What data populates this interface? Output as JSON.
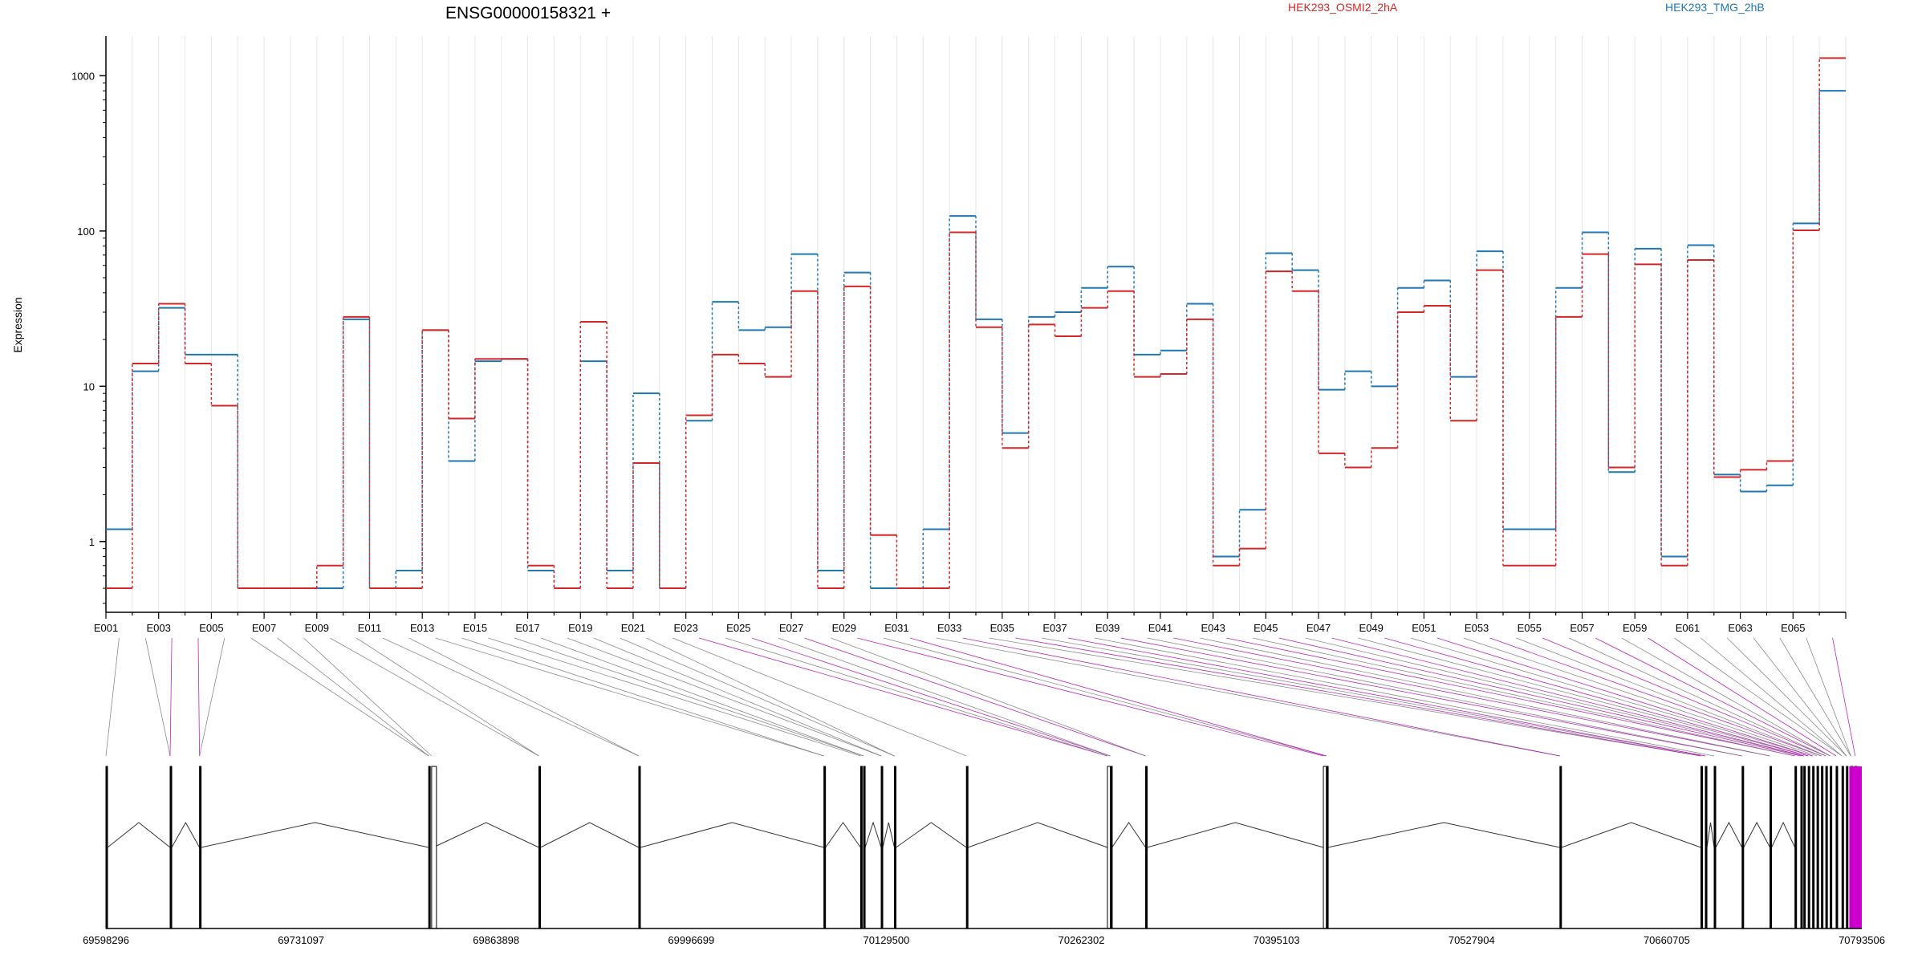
{
  "title": "ENSG00000158321 +",
  "colors": {
    "series_a": "#d62728",
    "series_b": "#1f77b4",
    "ticks": "#000000",
    "connector_gray": "#777777",
    "connector_magenta": "#b000b0",
    "exon_magenta": "#cc00cc"
  },
  "chart_data": {
    "type": "line",
    "title": "ENSG00000158321 +",
    "ylabel": "Expression",
    "xlabel": "",
    "yscale": "log",
    "ylim": [
      0.35,
      1800
    ],
    "yticks": [
      1,
      10,
      100,
      1000
    ],
    "ytick_labels": [
      "1",
      "10",
      "100",
      "1000"
    ],
    "legend_placement": "top-right",
    "grid": "vertical",
    "categories": [
      "E001",
      "E002",
      "E003",
      "E004",
      "E005",
      "E006",
      "E007",
      "E008",
      "E009",
      "E010",
      "E011",
      "E012",
      "E013",
      "E014",
      "E015",
      "E016",
      "E017",
      "E018",
      "E019",
      "E020",
      "E021",
      "E022",
      "E023",
      "E024",
      "E025",
      "E026",
      "E027",
      "E028",
      "E029",
      "E030",
      "E031",
      "E032",
      "E033",
      "E034",
      "E035",
      "E036",
      "E037",
      "E038",
      "E039",
      "E040",
      "E041",
      "E042",
      "E043",
      "E044",
      "E045",
      "E046",
      "E047",
      "E048",
      "E049",
      "E050",
      "E051",
      "E052",
      "E053",
      "E054",
      "E055",
      "E056",
      "E057",
      "E058",
      "E059",
      "E060",
      "E061",
      "E062",
      "E063",
      "E064",
      "E065",
      "E066"
    ],
    "xtick_labels": [
      "E001",
      "E003",
      "E005",
      "E007",
      "E009",
      "E011",
      "E013",
      "E015",
      "E017",
      "E019",
      "E021",
      "E023",
      "E025",
      "E027",
      "E029",
      "E031",
      "E033",
      "E035",
      "E037",
      "E039",
      "E041",
      "E043",
      "E045",
      "E047",
      "E049",
      "E051",
      "E053",
      "E055",
      "E057",
      "E059",
      "E061",
      "E063",
      "E065"
    ],
    "series": [
      {
        "name": "HEK293_OSMI2_2hA",
        "values": [
          0.5,
          14,
          34,
          14,
          7.5,
          0.5,
          0.5,
          0.5,
          0.7,
          28,
          0.5,
          0.5,
          23,
          6.2,
          15,
          15,
          0.7,
          0.5,
          26,
          0.5,
          3.2,
          0.5,
          6.5,
          16,
          14,
          11.5,
          41,
          0.5,
          44,
          1.1,
          0.5,
          0.5,
          98,
          24,
          4,
          25,
          21,
          32,
          41,
          11.5,
          12,
          27,
          0.7,
          0.9,
          55,
          41,
          3.7,
          3,
          4,
          30,
          33,
          6,
          56,
          0.7,
          0.7,
          28,
          71,
          3,
          61,
          0.7,
          65,
          2.6,
          2.9,
          3.3,
          101,
          1300
        ]
      },
      {
        "name": "HEK293_TMG_2hB",
        "values": [
          1.2,
          12.5,
          32,
          16,
          16,
          0.5,
          0.5,
          0.5,
          0.5,
          27,
          0.5,
          0.65,
          23,
          3.3,
          14.5,
          15,
          0.65,
          0.5,
          14.5,
          0.65,
          9,
          0.5,
          6,
          35,
          23,
          24,
          71,
          0.65,
          54,
          0.5,
          0.5,
          1.2,
          125,
          27,
          5,
          28,
          30,
          43,
          59,
          16,
          17,
          34,
          0.8,
          1.6,
          72,
          56,
          9.5,
          12.5,
          10,
          43,
          48,
          11.5,
          74,
          1.2,
          1.2,
          43,
          98,
          2.8,
          77,
          0.8,
          81,
          2.7,
          2.1,
          2.3,
          112,
          800
        ]
      }
    ]
  },
  "gene_track": {
    "coordinate_labels": [
      "69598296",
      "69731097",
      "69863898",
      "69996699",
      "70129500",
      "70262302",
      "70395103",
      "70527904",
      "70660705",
      "70793506"
    ],
    "coordinate_values": [
      69598296,
      69731097,
      69863898,
      69996699,
      70129500,
      70262302,
      70395103,
      70527904,
      70660705,
      70793506
    ],
    "exon_starts": [
      69598296,
      69642000,
      69662000,
      69818000,
      69820000,
      69893000,
      69961000,
      70087000,
      70112000,
      70114000,
      70126000,
      70135000,
      70184000,
      70280000,
      70282000,
      70306000,
      70427000,
      70429000,
      70588000,
      70684000,
      70687000,
      70693000,
      70712000,
      70731000,
      70748000,
      70752000,
      70754000,
      70757000,
      70760000,
      70763000,
      70766000,
      70769000,
      70772000,
      70776000,
      70780000,
      70783000,
      70786000,
      70789000
    ]
  }
}
